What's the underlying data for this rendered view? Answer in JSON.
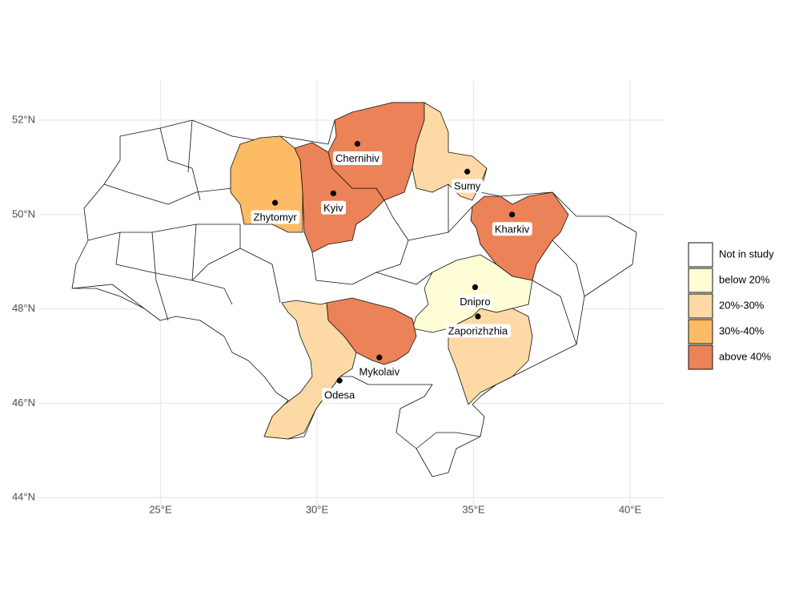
{
  "chart_data": {
    "type": "map",
    "xlim": [
      21.1,
      41.1
    ],
    "ylim": [
      43.85,
      52.85
    ],
    "xticks": [
      {
        "value": 25,
        "label": "25°E"
      },
      {
        "value": 30,
        "label": "30°E"
      },
      {
        "value": 35,
        "label": "35°E"
      },
      {
        "value": 40,
        "label": "40°E"
      }
    ],
    "yticks": [
      {
        "value": 44,
        "label": "44°N"
      },
      {
        "value": 46,
        "label": "46°N"
      },
      {
        "value": 48,
        "label": "48°N"
      },
      {
        "value": 50,
        "label": "50°N"
      },
      {
        "value": 52,
        "label": "52°N"
      }
    ],
    "grid": true,
    "legend_position": "right",
    "legend": [
      {
        "name": "Not in study",
        "color": "#ffffff"
      },
      {
        "name": "below 20%",
        "color": "#fffdd6"
      },
      {
        "name": "20%-30%",
        "color": "#fdd9a6"
      },
      {
        "name": "30%-40%",
        "color": "#fdbb66"
      },
      {
        "name": "above 40%",
        "color": "#ec8257"
      }
    ],
    "cities": [
      {
        "name": "Zhytomyr",
        "lon": 28.66,
        "lat": 50.25,
        "category": "30%-40%"
      },
      {
        "name": "Kyiv",
        "lon": 30.52,
        "lat": 50.45,
        "category": "above 40%"
      },
      {
        "name": "Chernihiv",
        "lon": 31.29,
        "lat": 51.5,
        "category": "above 40%"
      },
      {
        "name": "Sumy",
        "lon": 34.8,
        "lat": 50.91,
        "category": "20%-30%"
      },
      {
        "name": "Kharkiv",
        "lon": 36.23,
        "lat": 50.0,
        "category": "above 40%"
      },
      {
        "name": "Dnipro",
        "lon": 35.05,
        "lat": 48.46,
        "category": "below 20%"
      },
      {
        "name": "Zaporizhzhia",
        "lon": 35.14,
        "lat": 47.84,
        "category": "20%-30%"
      },
      {
        "name": "Mykolaiv",
        "lon": 31.99,
        "lat": 46.97,
        "category": "above 40%"
      },
      {
        "name": "Odesa",
        "lon": 30.72,
        "lat": 46.48,
        "category": "20%-30%"
      }
    ]
  }
}
